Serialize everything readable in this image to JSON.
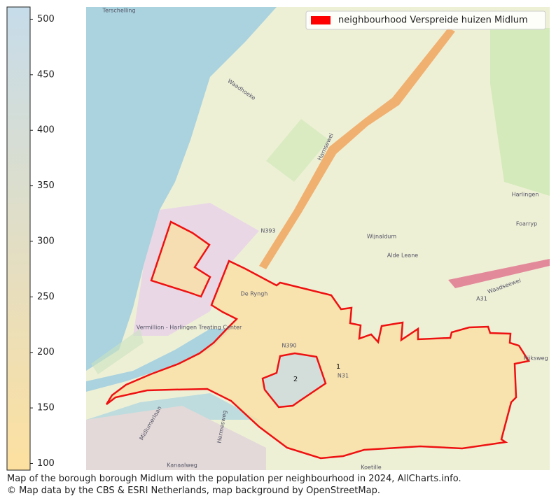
{
  "colorbar": {
    "lim": [
      94,
      511
    ],
    "ticks": [
      100,
      150,
      200,
      250,
      300,
      350,
      400,
      450,
      500
    ],
    "colors": [
      "#fde0a0",
      "#c6dcea"
    ]
  },
  "legend": {
    "label": "neighbourhood Verspreide huizen Midlum",
    "color": "#ff0000"
  },
  "neighbourhoods": [
    {
      "label": "1",
      "value": 120
    },
    {
      "label": "2",
      "value": 490
    }
  ],
  "map_labels": [
    "Terschelling",
    "Waadhoeke",
    "Harlingen",
    "Wijnaldum",
    "Foarryp",
    "Alde Leane",
    "N393",
    "A31",
    "Waadseewei",
    "Vermillion - Harlingen Treating Center",
    "De Ryngh",
    "Rijksweg",
    "Kanaalweg",
    "Koetille",
    "Harnsewei",
    "Midlumerlaan",
    "Hermesweg",
    "N390",
    "N31"
  ],
  "caption": [
    "Map of the borough borough Midlum with the population per neighbourhood in 2024, AllCharts.info.",
    "© Map data by the CBS & ESRI Netherlands, map background by OpenStreetMap."
  ]
}
